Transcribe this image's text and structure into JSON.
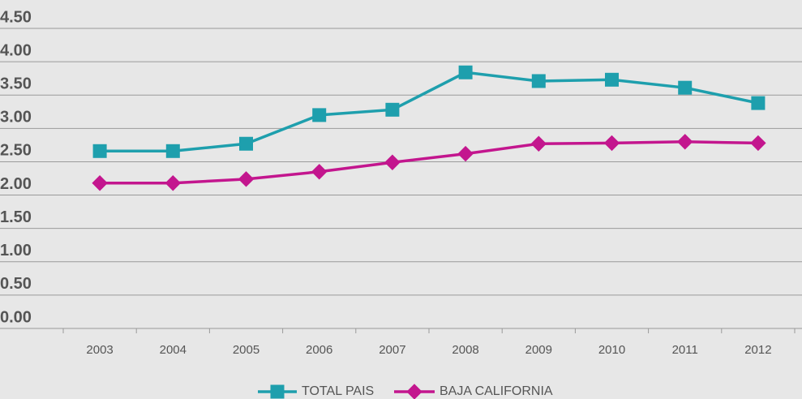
{
  "chart_data": {
    "type": "line",
    "categories": [
      "2003",
      "2004",
      "2005",
      "2006",
      "2007",
      "2008",
      "2009",
      "2010",
      "2011",
      "2012"
    ],
    "series": [
      {
        "name": "TOTAL PAIS",
        "color": "#1e9fad",
        "marker": "square",
        "values": [
          2.66,
          2.66,
          2.77,
          3.2,
          3.28,
          3.84,
          3.71,
          3.73,
          3.61,
          3.38
        ]
      },
      {
        "name": "BAJA CALIFORNIA",
        "color": "#c3168e",
        "marker": "diamond",
        "values": [
          2.18,
          2.18,
          2.24,
          2.35,
          2.49,
          2.62,
          2.77,
          2.78,
          2.8,
          2.78
        ]
      }
    ],
    "ylim": [
      0,
      4.5
    ],
    "yticks": [
      {
        "value": 0,
        "label": "0.00"
      },
      {
        "value": 0.5,
        "label": "0.50"
      },
      {
        "value": 1,
        "label": "1.00"
      },
      {
        "value": 1.5,
        "label": "1.50"
      },
      {
        "value": 2,
        "label": "2.00"
      },
      {
        "value": 2.5,
        "label": "2.50"
      },
      {
        "value": 3,
        "label": "3.00"
      },
      {
        "value": 3.5,
        "label": "3.50"
      },
      {
        "value": 4,
        "label": "4.00"
      },
      {
        "value": 4.5,
        "label": "4.50"
      }
    ],
    "grid": true,
    "legend": "bottom"
  }
}
